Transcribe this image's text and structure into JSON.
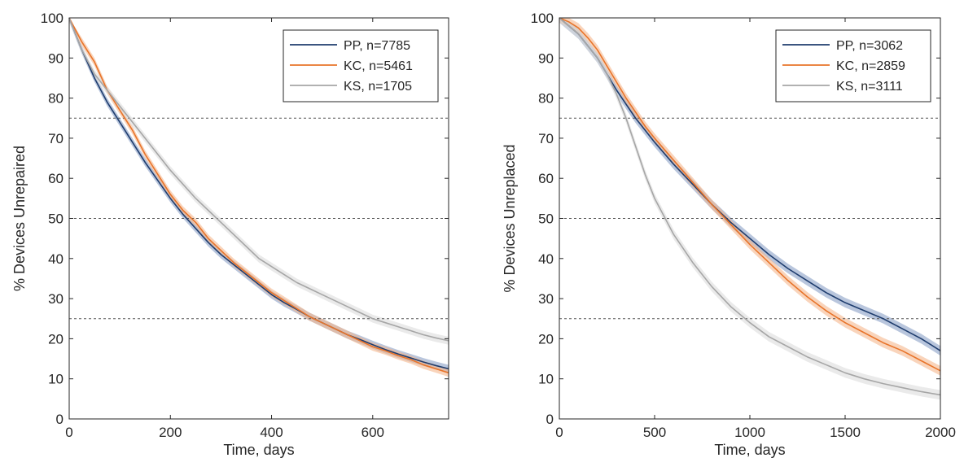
{
  "chart_data": [
    {
      "type": "line",
      "xlabel": "Time, days",
      "ylabel": "% Devices Unrepaired",
      "xlim": [
        0,
        750
      ],
      "ylim": [
        0,
        100
      ],
      "xticks": [
        0,
        200,
        400,
        600
      ],
      "yticks": [
        0,
        10,
        20,
        30,
        40,
        50,
        60,
        70,
        80,
        90,
        100
      ],
      "reference_lines_y": [
        75,
        50,
        25
      ],
      "legend_position": "top-right",
      "series": [
        {
          "name": "PP, n=7785",
          "color": "#1f3d6e",
          "band_color": "#8aa0c6",
          "x": [
            0,
            25,
            50,
            75,
            100,
            125,
            150,
            175,
            200,
            225,
            250,
            275,
            300,
            325,
            350,
            375,
            400,
            425,
            450,
            475,
            500,
            525,
            550,
            575,
            600,
            625,
            650,
            675,
            700,
            725,
            750
          ],
          "y": [
            100,
            92,
            85,
            79,
            74,
            69,
            64,
            59.5,
            55,
            51,
            47.5,
            44,
            41,
            38.5,
            36,
            33.5,
            31,
            29,
            27.3,
            25.5,
            24,
            22.5,
            21,
            19.8,
            18.5,
            17.3,
            16.2,
            15.2,
            14.2,
            13.3,
            12.5
          ]
        },
        {
          "name": "KC, n=5461",
          "color": "#e8742a",
          "band_color": "#f5b88e",
          "x": [
            0,
            25,
            50,
            75,
            100,
            125,
            150,
            175,
            200,
            225,
            250,
            275,
            300,
            325,
            350,
            375,
            400,
            425,
            450,
            475,
            500,
            525,
            550,
            575,
            600,
            625,
            650,
            675,
            700,
            725,
            750
          ],
          "y": [
            100,
            94,
            89,
            82,
            77,
            72,
            66,
            61,
            56,
            52,
            49,
            45,
            42,
            39,
            36.5,
            34,
            31.5,
            29.5,
            27.5,
            25.5,
            24,
            22.5,
            21,
            19.5,
            18,
            17,
            15.8,
            14.8,
            13.5,
            12.5,
            11.5
          ]
        },
        {
          "name": "KS, n=1705",
          "color": "#a6a6a6",
          "band_color": "#dcdcdc",
          "x": [
            0,
            25,
            50,
            75,
            100,
            125,
            150,
            175,
            200,
            225,
            250,
            275,
            300,
            325,
            350,
            375,
            400,
            425,
            450,
            475,
            500,
            525,
            550,
            575,
            600,
            625,
            650,
            675,
            700,
            725,
            750
          ],
          "y": [
            100,
            92,
            86,
            82,
            78,
            74,
            70,
            66,
            62,
            58.5,
            55,
            52,
            49,
            46,
            43,
            40,
            38,
            36,
            34,
            32.5,
            31,
            29.5,
            28,
            26.5,
            25,
            24,
            23,
            22,
            21,
            20.2,
            19.5
          ]
        }
      ]
    },
    {
      "type": "line",
      "xlabel": "Time, days",
      "ylabel": "% Devices Unreplaced",
      "xlim": [
        0,
        2000
      ],
      "ylim": [
        0,
        100
      ],
      "xticks": [
        0,
        500,
        1000,
        1500,
        2000
      ],
      "yticks": [
        0,
        10,
        20,
        30,
        40,
        50,
        60,
        70,
        80,
        90,
        100
      ],
      "reference_lines_y": [
        75,
        50,
        25
      ],
      "legend_position": "top-right",
      "series": [
        {
          "name": "PP, n=3062",
          "color": "#1f3d6e",
          "band_color": "#8aa0c6",
          "x": [
            0,
            50,
            100,
            150,
            200,
            250,
            300,
            350,
            400,
            450,
            500,
            600,
            700,
            800,
            900,
            1000,
            1100,
            1200,
            1300,
            1400,
            1500,
            1600,
            1700,
            1800,
            1900,
            2000
          ],
          "y": [
            100,
            98,
            96,
            93,
            90,
            86,
            82,
            78.5,
            75,
            72,
            69,
            63.5,
            58.5,
            53.5,
            49,
            45,
            41,
            37.5,
            34.5,
            31.5,
            29,
            27,
            25,
            22.5,
            20,
            17
          ]
        },
        {
          "name": "KC, n=2859",
          "color": "#e8742a",
          "band_color": "#f5b88e",
          "x": [
            0,
            50,
            100,
            150,
            200,
            250,
            300,
            350,
            400,
            450,
            500,
            600,
            700,
            800,
            900,
            1000,
            1100,
            1200,
            1300,
            1400,
            1500,
            1600,
            1700,
            1800,
            1900,
            2000
          ],
          "y": [
            100,
            99,
            97.5,
            95,
            92,
            88,
            84,
            80,
            76.5,
            73,
            70,
            64.5,
            59,
            53.5,
            48.5,
            43.5,
            39,
            34.5,
            30.5,
            27,
            24,
            21.5,
            19,
            17,
            14.5,
            12
          ]
        },
        {
          "name": "KS, n=3111",
          "color": "#a6a6a6",
          "band_color": "#dcdcdc",
          "x": [
            0,
            50,
            100,
            150,
            200,
            250,
            300,
            350,
            400,
            450,
            500,
            600,
            700,
            800,
            900,
            1000,
            1100,
            1200,
            1300,
            1400,
            1500,
            1600,
            1700,
            1800,
            1900,
            2000
          ],
          "y": [
            100,
            98,
            96,
            93,
            90,
            86,
            81,
            75,
            68,
            61,
            55,
            46,
            39,
            33,
            28,
            24,
            20.5,
            18,
            15.5,
            13.5,
            11.5,
            10,
            8.8,
            7.8,
            6.8,
            6
          ]
        }
      ]
    }
  ]
}
